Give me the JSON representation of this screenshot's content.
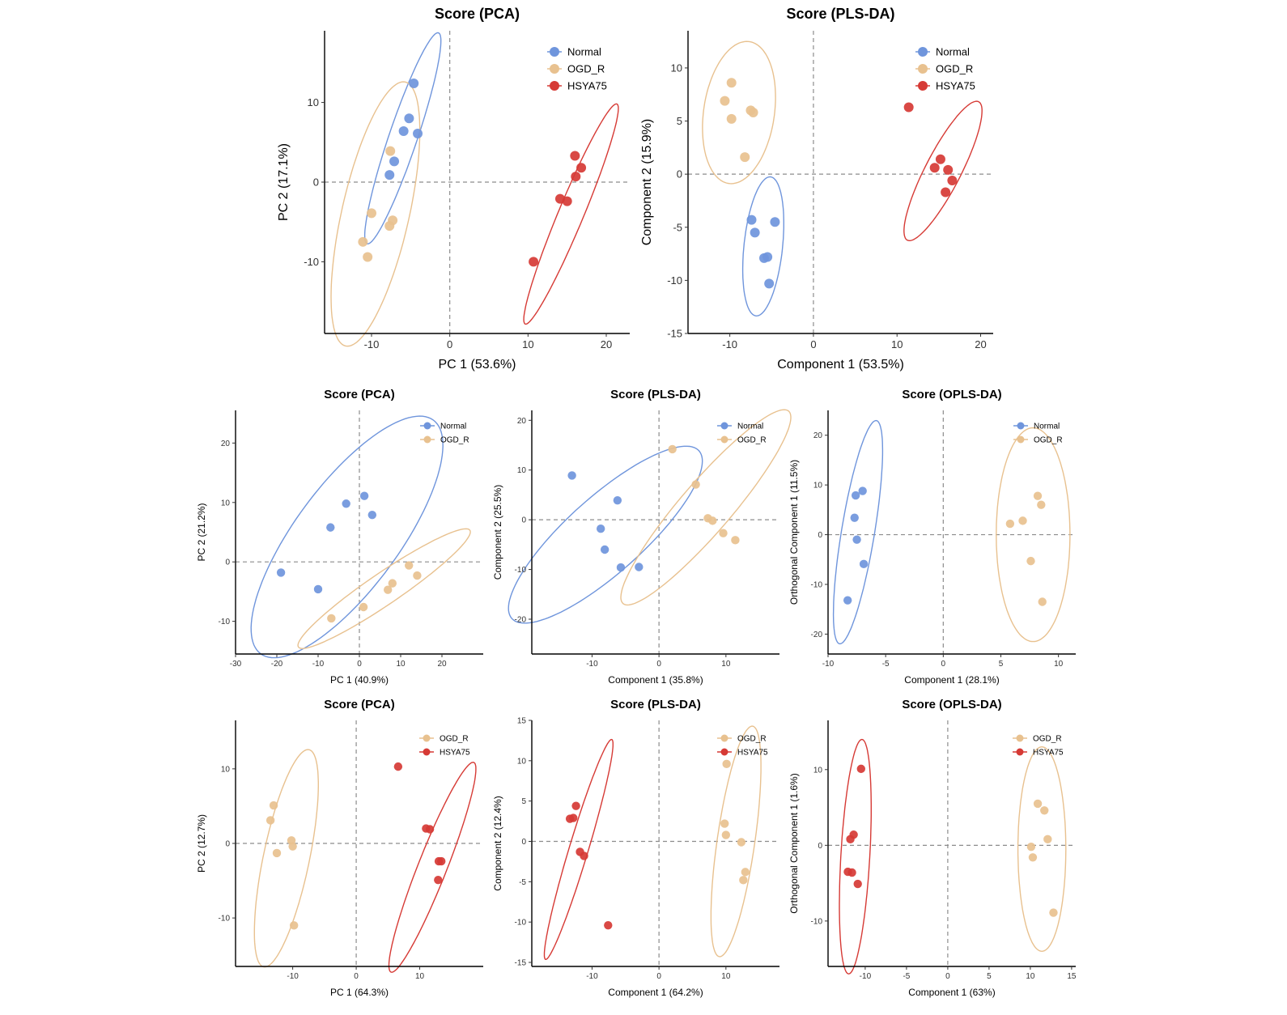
{
  "colors": {
    "Normal": "#6f95dc",
    "OGD_R": "#e8c18f",
    "HSYA75": "#d63a35"
  },
  "chart_data": [
    {
      "type": "scatter",
      "title": "Score (PCA)",
      "xlabel": "PC 1 (53.6%)",
      "ylabel": "PC 2 (17.1%)",
      "xlim": [
        -16,
        23
      ],
      "ylim": [
        -19,
        19
      ],
      "xticks": [
        -10,
        0,
        10,
        20
      ],
      "yticks": [
        -10,
        0,
        10
      ],
      "xtick_labels": [
        "-10",
        "0",
        "10",
        "20"
      ],
      "ytick_labels": [
        "-10",
        "0",
        "10"
      ],
      "legend": [
        "Normal",
        "OGD_R",
        "HSYA75"
      ],
      "series": [
        {
          "name": "Normal",
          "points": [
            [
              -4.6,
              12.4
            ],
            [
              -5.2,
              8.0
            ],
            [
              -5.9,
              6.4
            ],
            [
              -4.1,
              6.1
            ],
            [
              -7.1,
              2.6
            ],
            [
              -7.7,
              0.9
            ]
          ],
          "ellipse": {
            "cx": -6.0,
            "cy": 5.5,
            "rx": 14.0,
            "ry": 1.8,
            "angle": 71
          }
        },
        {
          "name": "OGD_R",
          "points": [
            [
              -7.6,
              3.9
            ],
            [
              -10.0,
              -3.9
            ],
            [
              -7.3,
              -4.8
            ],
            [
              -7.7,
              -5.5
            ],
            [
              -11.1,
              -7.5
            ],
            [
              -10.5,
              -9.4
            ]
          ],
          "ellipse": {
            "cx": -9.5,
            "cy": -4.0,
            "rx": 17.0,
            "ry": 4.3,
            "angle": 77
          }
        },
        {
          "name": "HSYA75",
          "points": [
            [
              16.0,
              3.3
            ],
            [
              16.8,
              1.8
            ],
            [
              16.1,
              0.7
            ],
            [
              14.1,
              -2.1
            ],
            [
              15.0,
              -2.4
            ],
            [
              10.7,
              -10.0
            ]
          ],
          "ellipse": {
            "cx": 15.5,
            "cy": -4.0,
            "rx": 15.0,
            "ry": 1.6,
            "angle": 67
          }
        }
      ]
    },
    {
      "type": "scatter",
      "title": "Score (PLS-DA)",
      "xlabel": "Component 1 (53.5%)",
      "ylabel": "Component 2 (15.9%)",
      "xlim": [
        -15,
        21.5
      ],
      "ylim": [
        -15,
        13.5
      ],
      "xticks": [
        -10,
        0,
        10,
        20
      ],
      "yticks": [
        -15,
        -10,
        -5,
        0,
        5,
        10
      ],
      "xtick_labels": [
        "-10",
        "0",
        "10",
        "20"
      ],
      "ytick_labels": [
        "-15",
        "-10",
        "-5",
        "0",
        "5",
        "10"
      ],
      "legend": [
        "Normal",
        "OGD_R",
        "HSYA75"
      ],
      "series": [
        {
          "name": "Normal",
          "points": [
            [
              -7.4,
              -4.3
            ],
            [
              -4.6,
              -4.5
            ],
            [
              -7.0,
              -5.5
            ],
            [
              -5.9,
              -7.9
            ],
            [
              -5.5,
              -7.8
            ],
            [
              -5.3,
              -10.3
            ]
          ],
          "ellipse": {
            "cx": -6.0,
            "cy": -6.8,
            "rx": 6.6,
            "ry": 2.3,
            "angle": 82
          }
        },
        {
          "name": "OGD_R",
          "points": [
            [
              -9.8,
              8.6
            ],
            [
              -10.6,
              6.9
            ],
            [
              -7.5,
              6.0
            ],
            [
              -7.2,
              5.8
            ],
            [
              -9.8,
              5.2
            ],
            [
              -8.2,
              1.6
            ]
          ],
          "ellipse": {
            "cx": -8.9,
            "cy": 5.8,
            "rx": 6.8,
            "ry": 4.2,
            "angle": 77
          }
        },
        {
          "name": "HSYA75",
          "points": [
            [
              11.4,
              6.3
            ],
            [
              15.2,
              1.4
            ],
            [
              14.5,
              0.6
            ],
            [
              16.1,
              0.4
            ],
            [
              16.6,
              -0.6
            ],
            [
              15.8,
              -1.7
            ]
          ],
          "ellipse": {
            "cx": 15.5,
            "cy": 0.3,
            "rx": 7.8,
            "ry": 2.0,
            "angle": 56
          }
        }
      ]
    },
    {
      "type": "scatter",
      "title": "Score (PCA)",
      "xlabel": "PC 1 (40.9%)",
      "ylabel": "PC 2 (21.2%)",
      "xlim": [
        -30,
        30
      ],
      "ylim": [
        -15.5,
        25.5
      ],
      "xticks": [
        -30,
        -20,
        -10,
        0,
        10,
        20
      ],
      "yticks": [
        -10,
        0,
        10,
        20
      ],
      "xtick_labels": [
        "-30",
        "-20",
        "-10",
        "0",
        "10",
        "20"
      ],
      "ytick_labels": [
        "-10",
        "0",
        "10",
        "20"
      ],
      "legend": [
        "Normal",
        "OGD_R"
      ],
      "series": [
        {
          "name": "Normal",
          "points": [
            [
              1.2,
              11.1
            ],
            [
              -3.2,
              9.8
            ],
            [
              3.1,
              7.9
            ],
            [
              -7.0,
              5.8
            ],
            [
              -19.0,
              -1.8
            ],
            [
              -10.0,
              -4.6
            ]
          ],
          "ellipse": {
            "cx": -3.0,
            "cy": 4.2,
            "rx": 29.0,
            "ry": 10.6,
            "angle": 40
          }
        },
        {
          "name": "OGD_R",
          "points": [
            [
              12.0,
              -0.6
            ],
            [
              14.0,
              -2.3
            ],
            [
              8.0,
              -3.6
            ],
            [
              6.9,
              -4.7
            ],
            [
              1.0,
              -7.6
            ],
            [
              -6.8,
              -9.5
            ]
          ],
          "ellipse": {
            "cx": 6.0,
            "cy": -4.5,
            "rx": 23.0,
            "ry": 2.9,
            "angle": 25
          }
        }
      ]
    },
    {
      "type": "scatter",
      "title": "Score (PLS-DA)",
      "xlabel": "Component 1 (35.8%)",
      "ylabel": "Component 2 (25.5%)",
      "xlim": [
        -19,
        18
      ],
      "ylim": [
        -27,
        22
      ],
      "xticks": [
        -10,
        0,
        10
      ],
      "yticks": [
        -20,
        -10,
        0,
        10,
        20
      ],
      "xtick_labels": [
        "-10",
        "0",
        "10"
      ],
      "ytick_labels": [
        "-20",
        "-10",
        "0",
        "10",
        "20"
      ],
      "legend": [
        "Normal",
        "OGD_R"
      ],
      "series": [
        {
          "name": "Normal",
          "points": [
            [
              -13.0,
              8.9
            ],
            [
              -6.2,
              3.9
            ],
            [
              -8.7,
              -1.8
            ],
            [
              -8.1,
              -6.0
            ],
            [
              -5.7,
              -9.6
            ],
            [
              -3.0,
              -9.5
            ]
          ],
          "ellipse": {
            "cx": -8.0,
            "cy": -3.0,
            "rx": 22.0,
            "ry": 6.5,
            "angle": 52
          }
        },
        {
          "name": "OGD_R",
          "points": [
            [
              2.0,
              14.2
            ],
            [
              5.5,
              7.1
            ],
            [
              7.3,
              0.3
            ],
            [
              8.0,
              -0.2
            ],
            [
              9.6,
              -2.7
            ],
            [
              11.4,
              -4.1
            ]
          ],
          "ellipse": {
            "cx": 7.0,
            "cy": 2.5,
            "rx": 23.0,
            "ry": 4.2,
            "angle": 58
          }
        }
      ]
    },
    {
      "type": "scatter",
      "title": "Score (OPLS-DA)",
      "xlabel": "Component 1 (28.1%)",
      "ylabel": "Orthogonal Component 1 (11.5%)",
      "xlim": [
        -10,
        11.5
      ],
      "ylim": [
        -24,
        25
      ],
      "xticks": [
        -10,
        -5,
        0,
        5,
        10
      ],
      "yticks": [
        -20,
        -10,
        0,
        10,
        20
      ],
      "xtick_labels": [
        "-10",
        "-5",
        "0",
        "5",
        "10"
      ],
      "ytick_labels": [
        "-20",
        "-10",
        "0",
        "10",
        "20"
      ],
      "legend": [
        "Normal",
        "OGD_R"
      ],
      "series": [
        {
          "name": "Normal",
          "points": [
            [
              -7.0,
              8.8
            ],
            [
              -7.6,
              7.9
            ],
            [
              -7.7,
              3.4
            ],
            [
              -7.5,
              -1.0
            ],
            [
              -6.9,
              -5.9
            ],
            [
              -8.3,
              -13.2
            ]
          ],
          "ellipse": {
            "cx": -7.4,
            "cy": 0.5,
            "rx": 22.5,
            "ry": 1.45,
            "angle": 86
          }
        },
        {
          "name": "OGD_R",
          "points": [
            [
              8.2,
              7.8
            ],
            [
              8.5,
              6.0
            ],
            [
              6.9,
              2.8
            ],
            [
              5.8,
              2.2
            ],
            [
              7.6,
              -5.3
            ],
            [
              8.6,
              -13.5
            ]
          ],
          "ellipse": {
            "cx": 7.8,
            "cy": 0.0,
            "rx": 21.5,
            "ry": 3.2,
            "angle": 90
          }
        }
      ]
    },
    {
      "type": "scatter",
      "title": "Score (PCA)",
      "xlabel": "PC 1 (64.3%)",
      "ylabel": "PC 2 (12.7%)",
      "xlim": [
        -19,
        20
      ],
      "ylim": [
        -16.5,
        16.5
      ],
      "xticks": [
        -10,
        0,
        10
      ],
      "yticks": [
        -10,
        0,
        10
      ],
      "xtick_labels": [
        "-10",
        "0",
        "10"
      ],
      "ytick_labels": [
        "-10",
        "0",
        "10"
      ],
      "legend": [
        "OGD_R",
        "HSYA75"
      ],
      "series": [
        {
          "name": "OGD_R",
          "points": [
            [
              -13.0,
              5.1
            ],
            [
              -13.5,
              3.1
            ],
            [
              -10.2,
              0.4
            ],
            [
              -10.0,
              -0.4
            ],
            [
              -12.5,
              -1.3
            ],
            [
              -9.8,
              -11.0
            ]
          ],
          "ellipse": {
            "cx": -11.0,
            "cy": -2.0,
            "rx": 15.0,
            "ry": 3.6,
            "angle": 76
          }
        },
        {
          "name": "HSYA75",
          "points": [
            [
              6.6,
              10.3
            ],
            [
              11.0,
              2.0
            ],
            [
              11.6,
              1.9
            ],
            [
              13.0,
              -2.4
            ],
            [
              13.4,
              -2.4
            ],
            [
              12.9,
              -4.9
            ]
          ],
          "ellipse": {
            "cx": 12.0,
            "cy": -3.2,
            "rx": 15.5,
            "ry": 2.2,
            "angle": 65
          }
        }
      ]
    },
    {
      "type": "scatter",
      "title": "Score (PLS-DA)",
      "xlabel": "Component 1 (64.2%)",
      "ylabel": "Component 2 (12.4%)",
      "xlim": [
        -19,
        18
      ],
      "ylim": [
        -15.5,
        15
      ],
      "xticks": [
        -10,
        0,
        10
      ],
      "yticks": [
        -15,
        -10,
        -5,
        0,
        5,
        10,
        15
      ],
      "xtick_labels": [
        "-10",
        "0",
        "10"
      ],
      "ytick_labels": [
        "-15",
        "-10",
        "-5",
        "0",
        "5",
        "10",
        "15"
      ],
      "legend": [
        "OGD_R",
        "HSYA75"
      ],
      "series": [
        {
          "name": "OGD_R",
          "points": [
            [
              10.1,
              9.6
            ],
            [
              9.8,
              2.2
            ],
            [
              10.0,
              0.8
            ],
            [
              12.3,
              -0.1
            ],
            [
              12.9,
              -3.8
            ],
            [
              12.6,
              -4.8
            ]
          ],
          "ellipse": {
            "cx": 11.5,
            "cy": 0.0,
            "rx": 14.5,
            "ry": 2.8,
            "angle": 80
          }
        },
        {
          "name": "HSYA75",
          "points": [
            [
              -12.4,
              4.4
            ],
            [
              -12.8,
              2.9
            ],
            [
              -13.3,
              2.8
            ],
            [
              -11.8,
              -1.3
            ],
            [
              -11.2,
              -1.8
            ],
            [
              -7.6,
              -10.4
            ]
          ],
          "ellipse": {
            "cx": -12.0,
            "cy": -1.0,
            "rx": 14.5,
            "ry": 1.4,
            "angle": 70
          }
        }
      ]
    },
    {
      "type": "scatter",
      "title": "Score (OPLS-DA)",
      "xlabel": "Component 1 (63%)",
      "ylabel": "Orthogonal Component 1 (1.6%)",
      "xlim": [
        -14.5,
        15.5
      ],
      "ylim": [
        -16,
        16.5
      ],
      "xticks": [
        -10,
        -5,
        0,
        5,
        10,
        15
      ],
      "yticks": [
        -10,
        0,
        10
      ],
      "xtick_labels": [
        "-10",
        "-5",
        "0",
        "5",
        "10",
        "15"
      ],
      "ytick_labels": [
        "-10",
        "0",
        "10"
      ],
      "legend": [
        "OGD_R",
        "HSYA75"
      ],
      "series": [
        {
          "name": "OGD_R",
          "points": [
            [
              10.9,
              5.5
            ],
            [
              11.7,
              4.6
            ],
            [
              12.1,
              0.8
            ],
            [
              10.1,
              -0.2
            ],
            [
              10.3,
              -1.6
            ],
            [
              12.8,
              -8.9
            ]
          ],
          "ellipse": {
            "cx": 11.4,
            "cy": -0.5,
            "rx": 13.5,
            "ry": 2.9,
            "angle": 90
          }
        },
        {
          "name": "HSYA75",
          "points": [
            [
              -10.5,
              10.1
            ],
            [
              -11.4,
              1.4
            ],
            [
              -11.8,
              0.8
            ],
            [
              -12.1,
              -3.5
            ],
            [
              -11.6,
              -3.6
            ],
            [
              -10.9,
              -5.1
            ]
          ],
          "ellipse": {
            "cx": -11.2,
            "cy": -1.5,
            "rx": 15.5,
            "ry": 1.75,
            "angle": 87
          }
        }
      ]
    }
  ]
}
